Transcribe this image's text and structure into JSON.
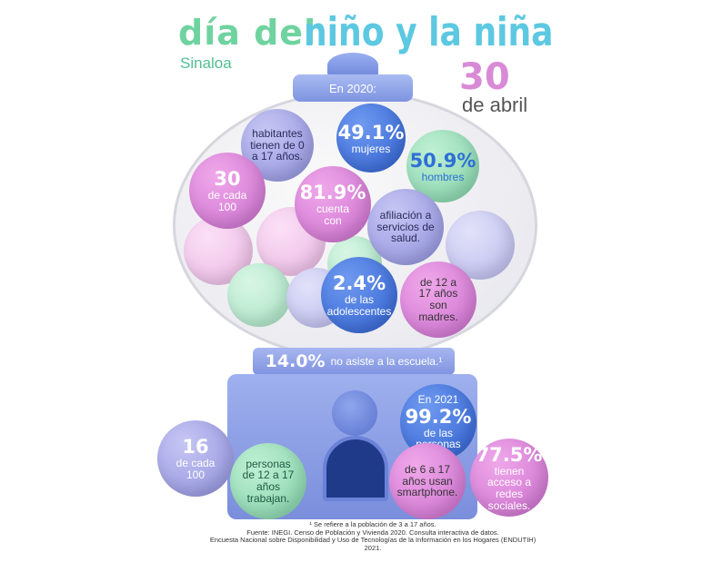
{
  "title": {
    "part1": "día del",
    "part2": "niño y la niña",
    "region": "Sinaloa",
    "day": "30",
    "month": "de abril"
  },
  "lid": "En 2020:",
  "balls": {
    "habitantes": "habitantes tienen de 0 a 17 años.",
    "mujeres": {
      "value": "49.1%",
      "label": "mujeres"
    },
    "hombres": {
      "value": "50.9%",
      "label": "hombres"
    },
    "cada100": {
      "value": "30",
      "label": "de cada 100"
    },
    "cuenta": {
      "value": "81.9%",
      "label": "cuenta con"
    },
    "afiliacion": "afiliación a servicios de salud.",
    "adolescentes": {
      "value": "2.4%",
      "label": "de las adolescentes"
    },
    "madres": "de 12 a 17 años son madres.",
    "trab16": {
      "value": "16",
      "label": "de cada 100"
    },
    "trabajan": "personas de 12 a 17 años trabajan.",
    "personas": {
      "pre": "En 2021",
      "value": "99.2%",
      "label": "de las personas"
    },
    "smartphone": "de 6 a 17 años usan smartphone.",
    "redes": {
      "value": "77.5%",
      "label": "tienen acceso a redes sociales."
    }
  },
  "escuela": {
    "value": "14.0%",
    "label": "no asiste a la escuela.¹"
  },
  "footnotes": [
    "¹ Se refiere a la población de 3 a 17 años.",
    "Fuente: INEGI. Censo de Población y Vivienda 2020. Consulta interactiva de datos.",
    "Encuesta Nacional sobre Disponibilidad y Uso de Tecnologías de la Información en los Hogares (ENDUTIH) 2021."
  ]
}
